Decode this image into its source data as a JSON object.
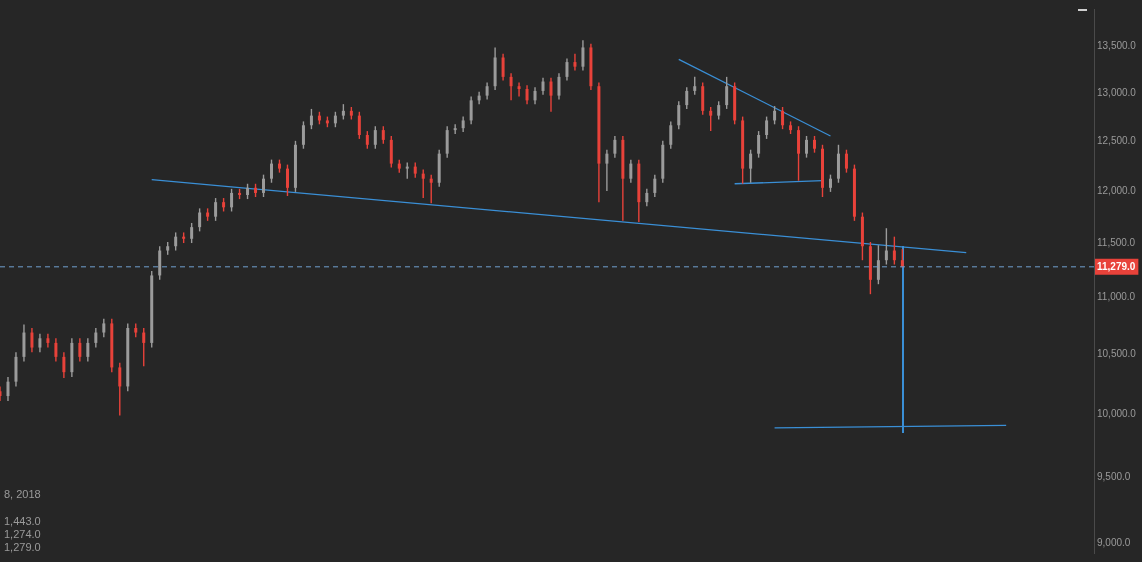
{
  "chart_data": {
    "type": "candlestick",
    "categories": [
      null,
      null,
      null,
      null,
      null,
      null,
      null,
      null,
      null,
      null,
      null,
      null,
      null,
      null,
      null,
      null,
      null,
      null,
      null,
      null,
      null,
      null,
      null,
      null,
      null,
      null,
      null,
      null,
      null,
      null,
      null,
      null,
      null,
      null,
      null,
      null,
      null,
      null,
      null,
      null,
      null,
      null,
      null,
      null,
      null,
      null,
      null,
      null,
      null,
      null,
      null,
      null,
      null,
      null,
      null,
      null,
      null,
      null,
      null,
      null,
      null,
      null,
      null,
      null,
      null,
      null,
      null,
      null,
      null,
      null,
      null,
      null,
      null,
      null,
      null,
      null,
      null,
      null,
      null,
      null,
      null,
      null,
      null,
      null,
      null,
      null,
      null,
      null,
      null,
      null,
      null,
      null,
      null,
      null,
      null,
      null,
      null,
      null,
      null,
      null,
      null,
      null,
      null,
      null,
      null,
      null,
      null,
      null,
      null,
      null,
      null,
      null,
      null,
      null,
      null,
      null,
      null,
      null,
      null,
      null,
      null,
      null,
      null,
      null,
      null,
      null,
      null,
      null,
      null,
      null,
      null,
      null,
      null,
      null,
      null,
      null,
      null,
      null
    ],
    "ohlc": [
      [
        10190,
        10230,
        10110,
        10150
      ],
      [
        10150,
        10310,
        10110,
        10270
      ],
      [
        10270,
        10520,
        10230,
        10480
      ],
      [
        10480,
        10760,
        10440,
        10690
      ],
      [
        10690,
        10730,
        10520,
        10560
      ],
      [
        10560,
        10680,
        10520,
        10640
      ],
      [
        10640,
        10680,
        10560,
        10600
      ],
      [
        10600,
        10640,
        10440,
        10480
      ],
      [
        10480,
        10520,
        10300,
        10350
      ],
      [
        10350,
        10640,
        10310,
        10600
      ],
      [
        10600,
        10640,
        10440,
        10480
      ],
      [
        10480,
        10640,
        10440,
        10600
      ],
      [
        10600,
        10730,
        10560,
        10690
      ],
      [
        10690,
        10810,
        10650,
        10770
      ],
      [
        10770,
        10810,
        10350,
        10390
      ],
      [
        10390,
        10430,
        9990,
        10230
      ],
      [
        10230,
        10770,
        10190,
        10730
      ],
      [
        10730,
        10770,
        10650,
        10690
      ],
      [
        10690,
        10730,
        10400,
        10600
      ],
      [
        10600,
        11240,
        10560,
        11200
      ],
      [
        11200,
        11470,
        11160,
        11430
      ],
      [
        11430,
        11510,
        11390,
        11470
      ],
      [
        11470,
        11600,
        11430,
        11560
      ],
      [
        11560,
        11600,
        11500,
        11540
      ],
      [
        11540,
        11690,
        11500,
        11650
      ],
      [
        11650,
        11830,
        11610,
        11790
      ],
      [
        11790,
        11830,
        11710,
        11750
      ],
      [
        11750,
        11930,
        11710,
        11890
      ],
      [
        11890,
        11930,
        11800,
        11840
      ],
      [
        11840,
        12020,
        11800,
        11980
      ],
      [
        11980,
        12020,
        11920,
        11960
      ],
      [
        11960,
        12070,
        11920,
        12030
      ],
      [
        12030,
        12070,
        11940,
        11980
      ],
      [
        11980,
        12160,
        11940,
        12120
      ],
      [
        12120,
        12310,
        12080,
        12270
      ],
      [
        12270,
        12310,
        12180,
        12220
      ],
      [
        12220,
        12260,
        11950,
        12030
      ],
      [
        12030,
        12500,
        11990,
        12460
      ],
      [
        12460,
        12700,
        12420,
        12660
      ],
      [
        12660,
        12830,
        12620,
        12760
      ],
      [
        12760,
        12800,
        12670,
        12710
      ],
      [
        12710,
        12750,
        12640,
        12680
      ],
      [
        12680,
        12800,
        12640,
        12760
      ],
      [
        12760,
        12880,
        12720,
        12810
      ],
      [
        12810,
        12850,
        12720,
        12760
      ],
      [
        12760,
        12800,
        12520,
        12560
      ],
      [
        12560,
        12600,
        12420,
        12460
      ],
      [
        12460,
        12650,
        12420,
        12610
      ],
      [
        12610,
        12650,
        12470,
        12510
      ],
      [
        12510,
        12550,
        12230,
        12270
      ],
      [
        12270,
        12310,
        12180,
        12220
      ],
      [
        12220,
        12280,
        12120,
        12240
      ],
      [
        12240,
        12280,
        12130,
        12170
      ],
      [
        12170,
        12210,
        11930,
        12120
      ],
      [
        12120,
        12160,
        11880,
        12080
      ],
      [
        12080,
        12410,
        12040,
        12370
      ],
      [
        12370,
        12650,
        12330,
        12610
      ],
      [
        12610,
        12670,
        12570,
        12630
      ],
      [
        12630,
        12750,
        12590,
        12710
      ],
      [
        12710,
        12960,
        12670,
        12920
      ],
      [
        12920,
        13010,
        12880,
        12970
      ],
      [
        12970,
        13110,
        12930,
        13070
      ],
      [
        13070,
        13490,
        13030,
        13380
      ],
      [
        13380,
        13420,
        13130,
        13170
      ],
      [
        13170,
        13210,
        12920,
        13070
      ],
      [
        13070,
        13110,
        12960,
        13040
      ],
      [
        13040,
        13080,
        12880,
        12920
      ],
      [
        12920,
        13060,
        12880,
        13020
      ],
      [
        13020,
        13160,
        12980,
        13120
      ],
      [
        13120,
        13160,
        12800,
        12970
      ],
      [
        12970,
        13210,
        12930,
        13170
      ],
      [
        13170,
        13370,
        13130,
        13330
      ],
      [
        13330,
        13420,
        13240,
        13280
      ],
      [
        13280,
        13570,
        13240,
        13490
      ],
      [
        13490,
        13530,
        13030,
        13070
      ],
      [
        13070,
        13110,
        11890,
        12270
      ],
      [
        12270,
        12410,
        12000,
        12370
      ],
      [
        12370,
        12550,
        12330,
        12510
      ],
      [
        12510,
        12550,
        11710,
        12120
      ],
      [
        12120,
        12310,
        12080,
        12270
      ],
      [
        12270,
        12310,
        11700,
        11890
      ],
      [
        11890,
        12020,
        11850,
        11980
      ],
      [
        11980,
        12160,
        11940,
        12120
      ],
      [
        12120,
        12500,
        12080,
        12460
      ],
      [
        12460,
        12700,
        12420,
        12660
      ],
      [
        12660,
        12910,
        12620,
        12870
      ],
      [
        12870,
        13060,
        12830,
        13020
      ],
      [
        13020,
        13170,
        12980,
        13070
      ],
      [
        13070,
        13110,
        12770,
        12810
      ],
      [
        12810,
        12850,
        12600,
        12760
      ],
      [
        12760,
        12910,
        12720,
        12870
      ],
      [
        12870,
        13170,
        12830,
        13070
      ],
      [
        13070,
        13110,
        12670,
        12710
      ],
      [
        12710,
        12750,
        12070,
        12220
      ],
      [
        12220,
        12410,
        12080,
        12370
      ],
      [
        12370,
        12600,
        12330,
        12560
      ],
      [
        12560,
        12750,
        12520,
        12710
      ],
      [
        12710,
        12860,
        12670,
        12810
      ],
      [
        12810,
        12850,
        12620,
        12660
      ],
      [
        12660,
        12700,
        12570,
        12610
      ],
      [
        12610,
        12650,
        12100,
        12370
      ],
      [
        12370,
        12550,
        12330,
        12510
      ],
      [
        12510,
        12550,
        12380,
        12420
      ],
      [
        12420,
        12460,
        11940,
        12030
      ],
      [
        12030,
        12160,
        11990,
        12120
      ],
      [
        12120,
        12460,
        12080,
        12370
      ],
      [
        12370,
        12410,
        12180,
        12220
      ],
      [
        12220,
        12260,
        11710,
        11750
      ],
      [
        11750,
        11790,
        11340,
        11470
      ],
      [
        11470,
        11510,
        11030,
        11160
      ],
      [
        11160,
        11480,
        11120,
        11340
      ],
      [
        11340,
        11640,
        11300,
        11430
      ],
      [
        11430,
        11560,
        11300,
        11340
      ],
      [
        11340,
        11443,
        11274,
        11279
      ],
      null,
      null,
      null,
      null,
      null,
      null,
      null,
      null,
      null,
      null,
      null,
      null,
      null,
      null,
      null,
      null,
      null,
      null,
      null,
      null,
      null,
      null,
      null,
      null
    ],
    "colors": [
      "#e8423a",
      "#9b9b9b",
      "#9b9b9b",
      "#9b9b9b",
      "#e8423a",
      "#9b9b9b",
      "#e8423a",
      "#e8423a",
      "#e8423a",
      "#9b9b9b",
      "#e8423a",
      "#9b9b9b",
      "#9b9b9b",
      "#9b9b9b",
      "#e8423a",
      "#e8423a",
      "#9b9b9b",
      "#e8423a",
      "#e8423a",
      "#9b9b9b",
      "#9b9b9b",
      "#9b9b9b",
      "#9b9b9b",
      "#e8423a",
      "#9b9b9b",
      "#9b9b9b",
      "#e8423a",
      "#9b9b9b",
      "#e8423a",
      "#9b9b9b",
      "#e8423a",
      "#9b9b9b",
      "#e8423a",
      "#9b9b9b",
      "#9b9b9b",
      "#e8423a",
      "#e8423a",
      "#9b9b9b",
      "#9b9b9b",
      "#9b9b9b",
      "#e8423a",
      "#e8423a",
      "#9b9b9b",
      "#9b9b9b",
      "#e8423a",
      "#e8423a",
      "#e8423a",
      "#9b9b9b",
      "#e8423a",
      "#e8423a",
      "#e8423a",
      "#9b9b9b",
      "#e8423a",
      "#e8423a",
      "#e8423a",
      "#9b9b9b",
      "#9b9b9b",
      "#9b9b9b",
      "#9b9b9b",
      "#9b9b9b",
      "#9b9b9b",
      "#9b9b9b",
      "#9b9b9b",
      "#e8423a",
      "#e8423a",
      "#e8423a",
      "#e8423a",
      "#9b9b9b",
      "#9b9b9b",
      "#e8423a",
      "#9b9b9b",
      "#9b9b9b",
      "#e8423a",
      "#9b9b9b",
      "#e8423a",
      "#e8423a",
      "#9b9b9b",
      "#9b9b9b",
      "#e8423a",
      "#9b9b9b",
      "#e8423a",
      "#9b9b9b",
      "#9b9b9b",
      "#9b9b9b",
      "#9b9b9b",
      "#9b9b9b",
      "#9b9b9b",
      "#9b9b9b",
      "#e8423a",
      "#e8423a",
      "#9b9b9b",
      "#9b9b9b",
      "#e8423a",
      "#e8423a",
      "#9b9b9b",
      "#9b9b9b",
      "#9b9b9b",
      "#9b9b9b",
      "#e8423a",
      "#e8423a",
      "#e8423a",
      "#9b9b9b",
      "#e8423a",
      "#e8423a",
      "#9b9b9b",
      "#9b9b9b",
      "#e8423a",
      "#e8423a",
      "#e8423a",
      "#e8423a",
      "#9b9b9b",
      "#9b9b9b",
      "#e8423a",
      "#e8423a",
      null,
      null,
      null,
      null,
      null,
      null,
      null,
      null,
      null,
      null,
      null,
      null,
      null,
      null,
      null,
      null,
      null,
      null,
      null,
      null,
      null,
      null,
      null,
      null
    ],
    "series": [
      {
        "type": "line",
        "color": "#3a8fd6",
        "values": [
          null,
          null,
          null,
          null,
          null,
          null,
          null,
          null,
          null,
          null,
          null,
          null,
          null,
          null,
          null,
          null,
          null,
          null,
          null,
          12110,
          null,
          null,
          null,
          null,
          null,
          null,
          null,
          null,
          null,
          null,
          null,
          null,
          null,
          null,
          null,
          null,
          null,
          null,
          null,
          null,
          null,
          null,
          null,
          null,
          null,
          null,
          null,
          null,
          null,
          null,
          null,
          null,
          null,
          null,
          null,
          null,
          null,
          null,
          null,
          null,
          null,
          null,
          null,
          null,
          null,
          null,
          null,
          null,
          null,
          null,
          null,
          null,
          null,
          null,
          null,
          null,
          null,
          null,
          null,
          null,
          null,
          null,
          null,
          null,
          null,
          null,
          null,
          null,
          null,
          null,
          null,
          null,
          null,
          null,
          null,
          null,
          null,
          null,
          null,
          null,
          null,
          null,
          null,
          null,
          null,
          null,
          null,
          null,
          null,
          null,
          null,
          null,
          null,
          null,
          null,
          null,
          null,
          null,
          null,
          null,
          null,
          11410,
          null,
          null,
          null,
          null,
          null,
          null,
          null,
          null,
          null,
          null,
          null,
          null,
          null,
          null,
          null,
          null
        ]
      },
      {
        "type": "line",
        "color": "#3a8fd6",
        "values": [
          null,
          null,
          null,
          null,
          null,
          null,
          null,
          null,
          null,
          null,
          null,
          null,
          null,
          null,
          null,
          null,
          null,
          null,
          null,
          null,
          null,
          null,
          null,
          null,
          null,
          null,
          null,
          null,
          null,
          null,
          null,
          null,
          null,
          null,
          null,
          null,
          null,
          null,
          null,
          null,
          null,
          null,
          null,
          null,
          null,
          null,
          null,
          null,
          null,
          null,
          null,
          null,
          null,
          null,
          null,
          null,
          null,
          null,
          null,
          null,
          null,
          null,
          null,
          null,
          null,
          null,
          null,
          null,
          null,
          null,
          null,
          null,
          null,
          null,
          null,
          null,
          null,
          null,
          null,
          null,
          null,
          null,
          null,
          null,
          null,
          13360,
          null,
          null,
          null,
          null,
          null,
          null,
          null,
          null,
          null,
          null,
          null,
          null,
          null,
          null,
          null,
          null,
          null,
          null,
          12550,
          null,
          null,
          null,
          null,
          null,
          null,
          null,
          null,
          null,
          null,
          null,
          null,
          null,
          null,
          null,
          null,
          null,
          null,
          null,
          null,
          null,
          null,
          null,
          null,
          null,
          null,
          null,
          null,
          null,
          null,
          null,
          null,
          null
        ]
      },
      {
        "type": "line",
        "color": "#3a8fd6",
        "values": [
          null,
          null,
          null,
          null,
          null,
          null,
          null,
          null,
          null,
          null,
          null,
          null,
          null,
          null,
          null,
          null,
          null,
          null,
          null,
          null,
          null,
          null,
          null,
          null,
          null,
          null,
          null,
          null,
          null,
          null,
          null,
          null,
          null,
          null,
          null,
          null,
          null,
          null,
          null,
          null,
          null,
          null,
          null,
          null,
          null,
          null,
          null,
          null,
          null,
          null,
          null,
          null,
          null,
          null,
          null,
          null,
          null,
          null,
          null,
          null,
          null,
          null,
          null,
          null,
          null,
          null,
          null,
          null,
          null,
          null,
          null,
          null,
          null,
          null,
          null,
          null,
          null,
          null,
          null,
          null,
          null,
          null,
          null,
          null,
          null,
          null,
          null,
          null,
          null,
          null,
          null,
          null,
          12070,
          null,
          null,
          null,
          null,
          null,
          null,
          null,
          null,
          null,
          null,
          12100,
          null,
          null,
          null,
          null,
          null,
          null,
          null,
          null,
          null,
          null,
          null,
          null,
          null,
          null,
          null,
          null,
          null,
          null,
          null,
          null,
          null,
          null,
          null,
          null,
          null,
          null,
          null,
          null,
          null,
          null,
          null,
          null,
          null,
          null
        ]
      },
      {
        "type": "line",
        "color": "#3a8fd6",
        "values": [
          null,
          null,
          null,
          null,
          null,
          null,
          null,
          null,
          null,
          null,
          null,
          null,
          null,
          null,
          null,
          null,
          null,
          null,
          null,
          null,
          null,
          null,
          null,
          null,
          null,
          null,
          null,
          null,
          null,
          null,
          null,
          null,
          null,
          null,
          null,
          null,
          null,
          null,
          null,
          null,
          null,
          null,
          null,
          null,
          null,
          null,
          null,
          null,
          null,
          null,
          null,
          null,
          null,
          null,
          null,
          null,
          null,
          null,
          null,
          null,
          null,
          null,
          null,
          null,
          null,
          null,
          null,
          null,
          null,
          null,
          null,
          null,
          null,
          null,
          null,
          null,
          null,
          null,
          null,
          null,
          null,
          null,
          null,
          null,
          null,
          null,
          null,
          null,
          null,
          null,
          null,
          null,
          null,
          null,
          null,
          null,
          null,
          9890,
          null,
          null,
          null,
          null,
          null,
          null,
          null,
          null,
          null,
          null,
          null,
          null,
          null,
          null,
          null,
          null,
          null,
          null,
          null,
          null,
          null,
          null,
          null,
          null,
          null,
          null,
          null,
          null,
          9910,
          null,
          null,
          null,
          null,
          null,
          null,
          null,
          null,
          null,
          null,
          null
        ]
      }
    ],
    "ylim": [
      8930,
      13920
    ],
    "yticks": [
      {
        "value": 9000,
        "label": "9,000.0"
      },
      {
        "value": 9500,
        "label": "9,500.0"
      },
      {
        "value": 10000,
        "label": "10,000.0"
      },
      {
        "value": 10500,
        "label": "10,500.0"
      },
      {
        "value": 11000,
        "label": "11,000.0"
      },
      {
        "value": 11500,
        "label": "11,500.0"
      },
      {
        "value": 12000,
        "label": "12,000.0"
      },
      {
        "value": 12500,
        "label": "12,500.0"
      },
      {
        "value": 13000,
        "label": "13,000.0"
      },
      {
        "value": 13500,
        "label": "13,500.0"
      }
    ],
    "log": "y",
    "tick_labels": "y",
    "marker": "none",
    "ref_lines": [
      {
        "axis": "y",
        "value": 11279,
        "label": "11,279.0",
        "color": "#6f9fcf",
        "line_style": "dashed"
      }
    ],
    "annotations": [
      "8, 2018",
      "1,443.0",
      "1,274.0",
      "1,279.0"
    ]
  }
}
